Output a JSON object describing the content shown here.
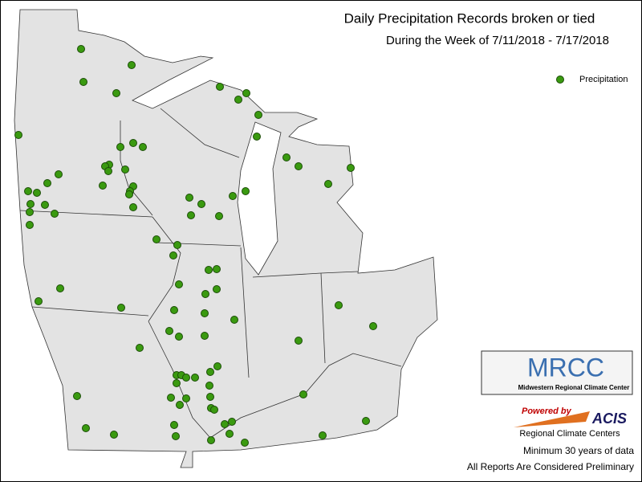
{
  "header": {
    "title": "Daily Precipitation Records broken or tied",
    "subtitle": "During the Week of 7/11/2018 - 7/17/2018"
  },
  "legend": {
    "label": "Precipitation"
  },
  "logos": {
    "mrcc": "MRCC",
    "mrcc_name": "Midwestern Regional Climate Center",
    "powered": "Powered by",
    "acis": "ACIS",
    "rcc": "Regional Climate Centers"
  },
  "notes": [
    "Minimum 30 years of data",
    "All Reports Are Considered Preliminary"
  ]
}
